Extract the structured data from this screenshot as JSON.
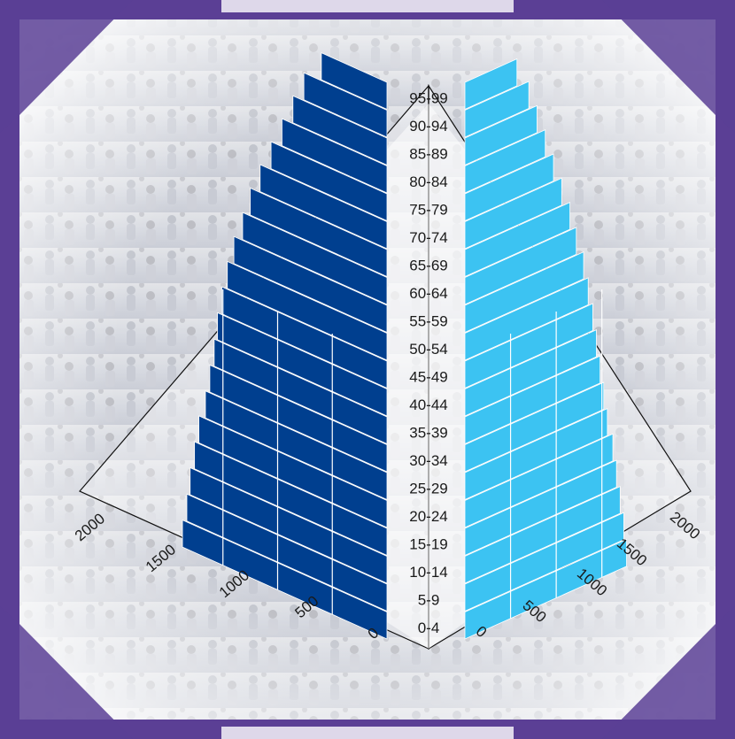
{
  "colors": {
    "frame": "#5b3f95",
    "frame_dark": "#3e2a72",
    "male_bar": "#003f8f",
    "female_bar": "#3cc3f2",
    "background_photo": "#cfd2da"
  },
  "chart_data": {
    "type": "bar",
    "orientation": "horizontal",
    "style": "3d pyramid",
    "title": "",
    "xlabel": "",
    "ylabel": "",
    "categories": [
      "0-4",
      "5-9",
      "10-14",
      "15-19",
      "20-24",
      "25-29",
      "30-34",
      "35-39",
      "40-44",
      "45-49",
      "50-54",
      "55-59",
      "60-64",
      "65-69",
      "70-74",
      "75-79",
      "80-84",
      "85-89",
      "90-94",
      "95-99"
    ],
    "series": [
      {
        "values": [
          1870,
          1830,
          1800,
          1760,
          1720,
          1660,
          1620,
          1580,
          1550,
          1510,
          1460,
          1400,
          1320,
          1250,
          1160,
          1060,
          960,
          860,
          760,
          600
        ]
      },
      {
        "values": [
          1770,
          1740,
          1700,
          1660,
          1620,
          1560,
          1520,
          1480,
          1440,
          1400,
          1350,
          1300,
          1220,
          1150,
          1060,
          970,
          880,
          790,
          700,
          570
        ]
      }
    ],
    "xlim": [
      0,
      2000
    ],
    "left_ticks": [
      "0",
      "500",
      "1000",
      "1500",
      "2000"
    ],
    "right_ticks": [
      "0",
      "500",
      "1000",
      "1500",
      "2000"
    ],
    "grid": true
  }
}
